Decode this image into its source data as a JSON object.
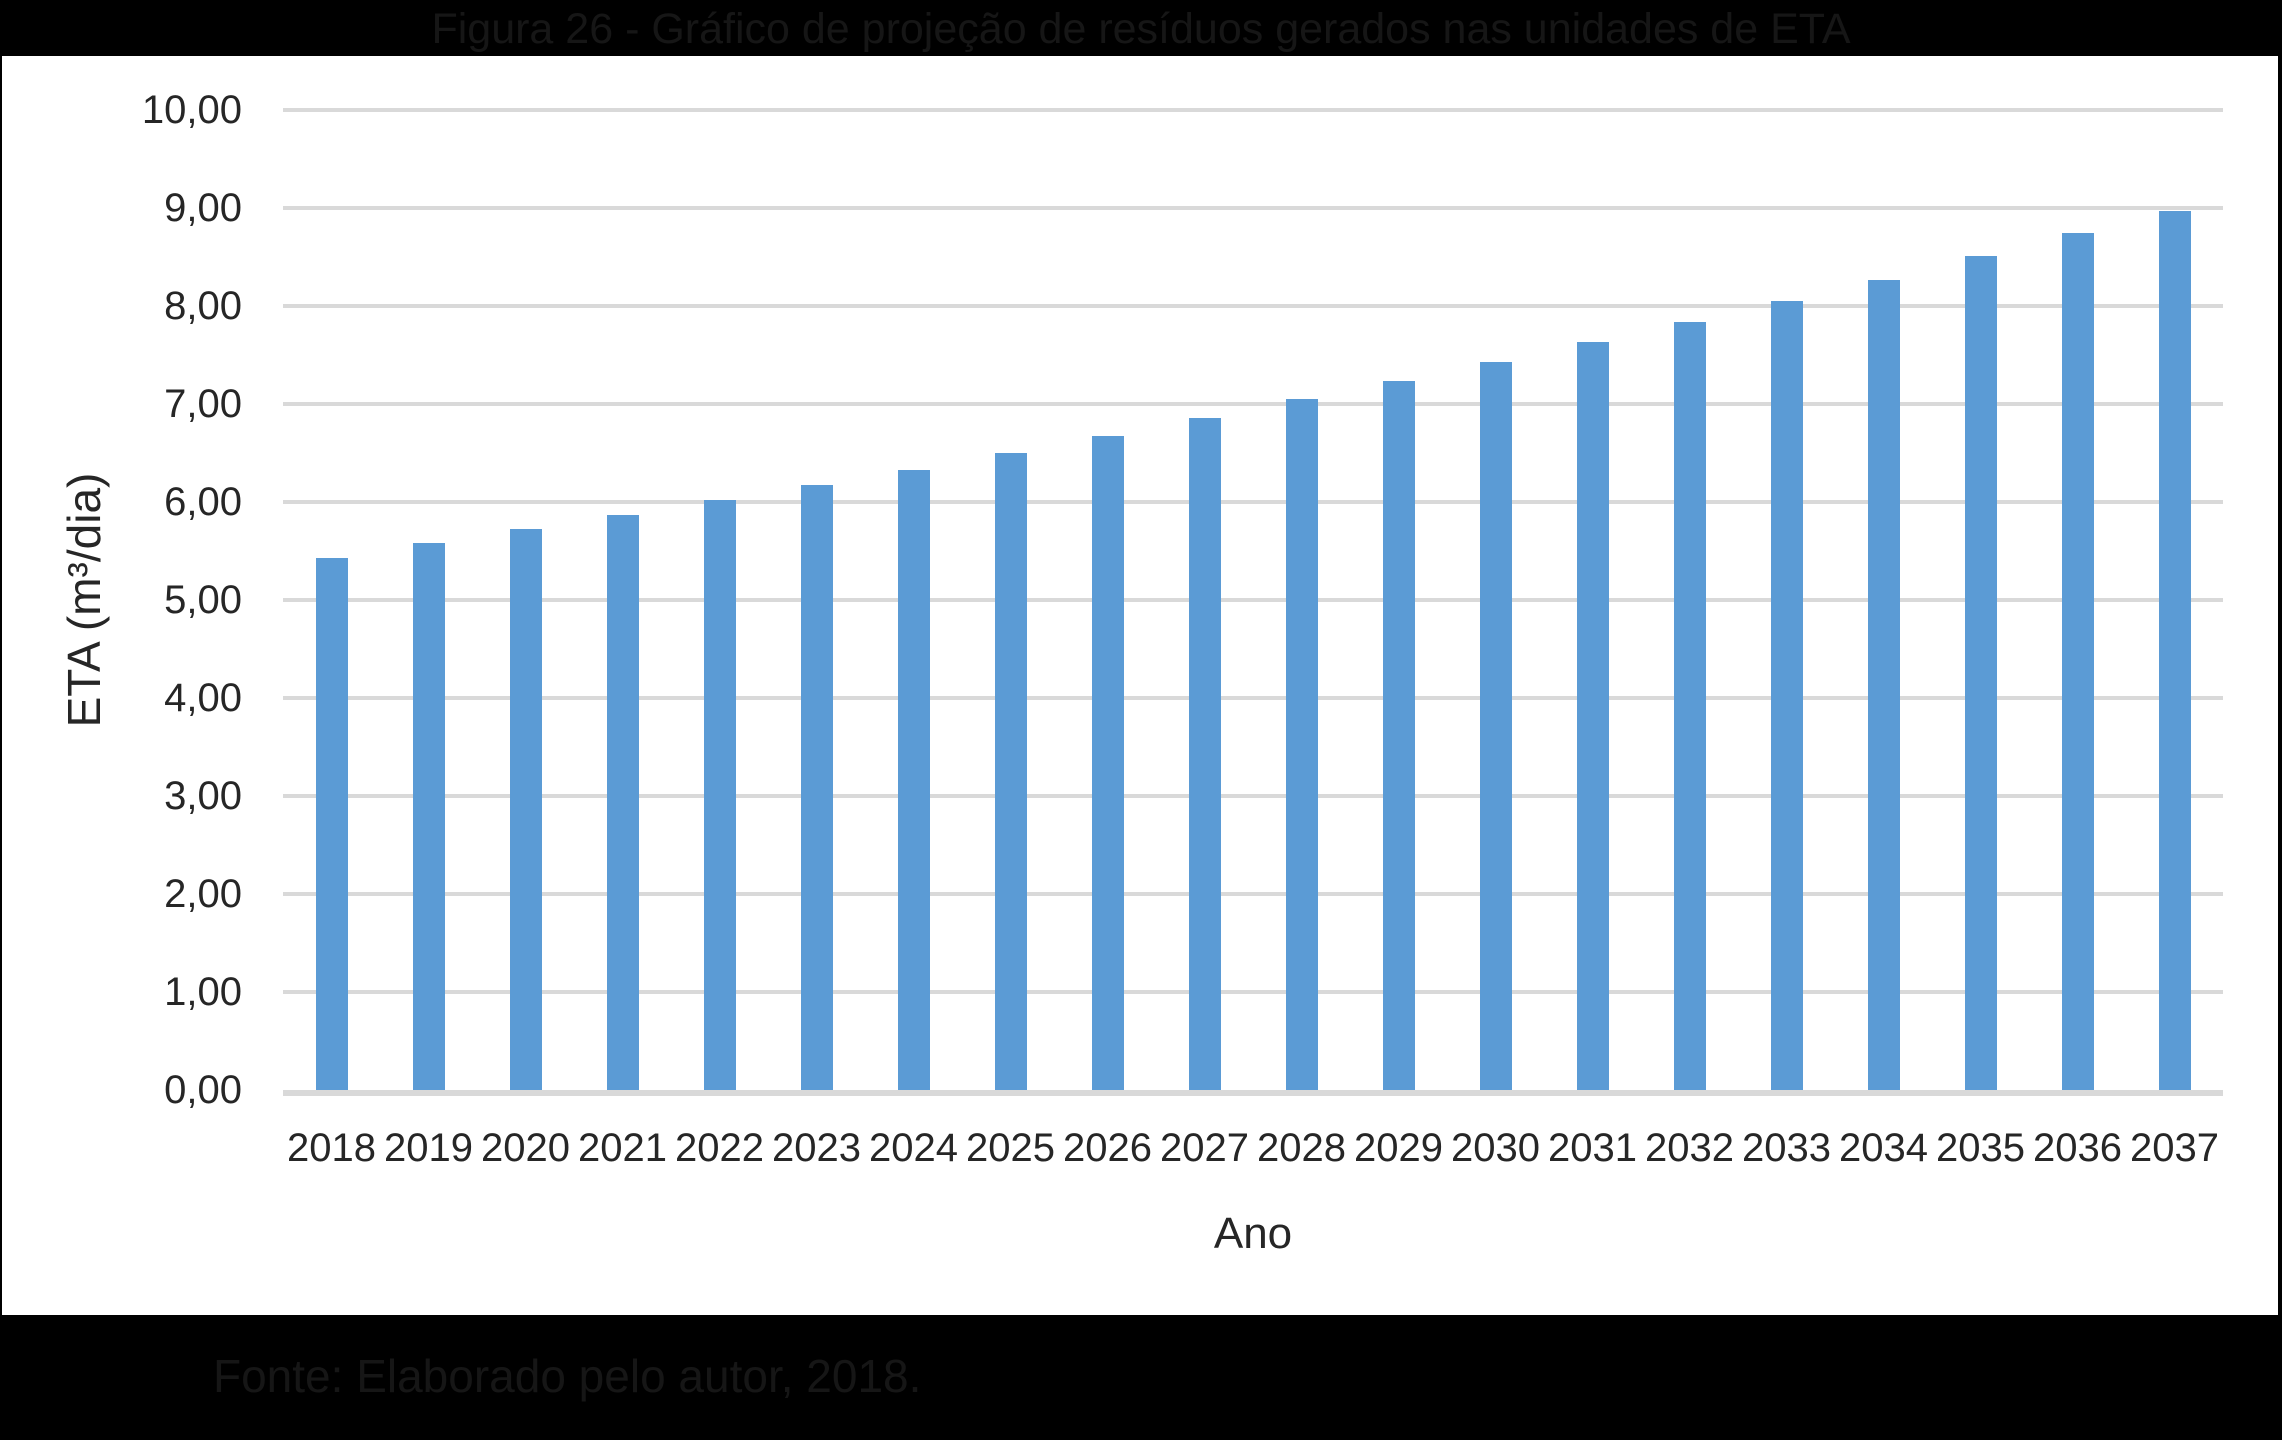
{
  "figure": {
    "caption": "Fonte: Elaborado pelo autor, 2018."
  },
  "chart_data": {
    "type": "bar",
    "title": "Figura 26 - Gráfico de projeção de resíduos gerados nas unidades de ETA",
    "xlabel": "Ano",
    "ylabel": "ETA (m³/dia)",
    "categories": [
      "2018",
      "2019",
      "2020",
      "2021",
      "2022",
      "2023",
      "2024",
      "2025",
      "2026",
      "2027",
      "2028",
      "2029",
      "2030",
      "2031",
      "2032",
      "2033",
      "2034",
      "2035",
      "2036",
      "2037"
    ],
    "values": [
      5.43,
      5.58,
      5.72,
      5.87,
      6.02,
      6.17,
      6.33,
      6.5,
      6.67,
      6.86,
      7.05,
      7.23,
      7.43,
      7.63,
      7.84,
      8.05,
      8.27,
      8.51,
      8.74,
      8.97
    ],
    "ylim": [
      0,
      10
    ],
    "ytick_step": 1,
    "ytick_labels": [
      "0,00",
      "1,00",
      "2,00",
      "3,00",
      "4,00",
      "5,00",
      "6,00",
      "7,00",
      "8,00",
      "9,00",
      "10,00"
    ],
    "grid": true,
    "legend": "none",
    "bar_color": "#5B9BD5",
    "gridline_color": "#D9D9D9",
    "axis_line_color": "#D9D9D9",
    "axis_text_color": "#262626",
    "panel_background": "#FFFFFF",
    "page_background": "#000000"
  }
}
